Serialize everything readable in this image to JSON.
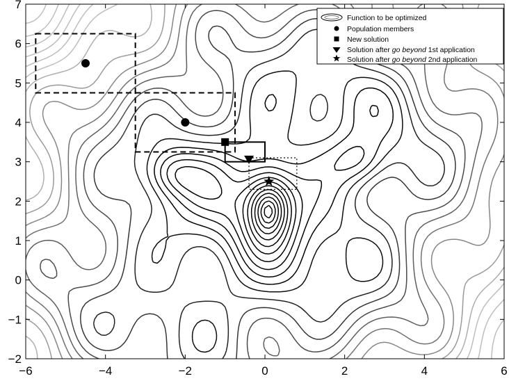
{
  "chart_data": {
    "type": "scatter",
    "title": "",
    "xlabel": "",
    "ylabel": "",
    "xlim": [
      -6,
      6
    ],
    "ylim": [
      -2,
      7
    ],
    "xticks": [
      "-6",
      "-4",
      "-2",
      "0",
      "2",
      "4",
      "6"
    ],
    "yticks": [
      "-2",
      "-1",
      "0",
      "1",
      "2",
      "3",
      "4",
      "5",
      "6",
      "7"
    ],
    "grid": false,
    "legend_position": "top-right",
    "series": [
      {
        "name": "Population members",
        "marker": "circle",
        "points": [
          {
            "x": -4.5,
            "y": 5.5
          },
          {
            "x": -2.0,
            "y": 4.0
          }
        ]
      },
      {
        "name": "New solution",
        "marker": "square",
        "points": [
          {
            "x": -1.0,
            "y": 3.5
          }
        ]
      },
      {
        "name": "Solution after go beyond 1st application",
        "marker": "triangle-down",
        "points": [
          {
            "x": -0.4,
            "y": 3.05
          }
        ]
      },
      {
        "name": "Solution after go beyond 2nd application",
        "marker": "star",
        "points": [
          {
            "x": 0.1,
            "y": 2.5
          }
        ]
      }
    ],
    "regions": [
      {
        "style": "dashed",
        "x": [
          -5.75,
          -3.25
        ],
        "y": [
          4.75,
          6.25
        ]
      },
      {
        "style": "dashed",
        "x": [
          -3.25,
          -0.75
        ],
        "y": [
          3.25,
          4.75
        ]
      },
      {
        "style": "solid",
        "x": [
          -1.0,
          0.0
        ],
        "y": [
          3.0,
          3.5
        ]
      },
      {
        "style": "dotted",
        "x": [
          -0.4,
          0.8
        ],
        "y": [
          2.3,
          3.1
        ]
      }
    ],
    "contour_levels": 26,
    "legend_entries": {
      "function": "Function to be optimized",
      "population": "Population members",
      "new_solution": "New solution",
      "first_pre": "Solution after ",
      "first_it": "go beyond",
      "first_post": " 1st application",
      "second_pre": "Solution after ",
      "second_it": "go beyond",
      "second_post": " 2nd application"
    },
    "colors": {
      "contour_dark": "#000000",
      "contour_light": "#bdbdbd",
      "marker": "#000000",
      "background": "#ffffff"
    }
  }
}
